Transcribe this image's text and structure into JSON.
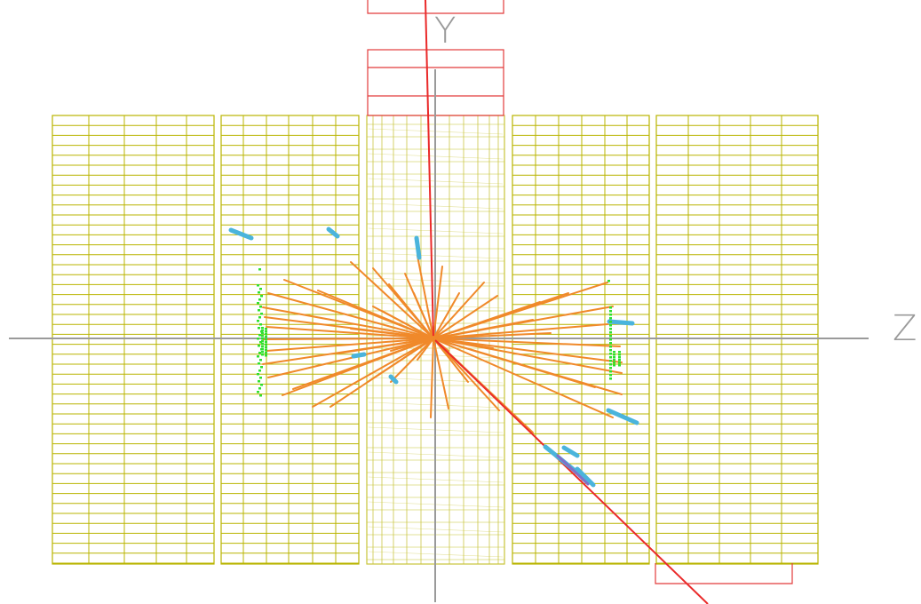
{
  "axes": {
    "y_label": "Y",
    "z_label": "Z"
  },
  "colors": {
    "background": "#ffffff",
    "axis": "#9a9a9a",
    "calorimeter_grid": "#b9b400",
    "barrel_grid": "#c8c43a",
    "muon_chamber": "#e23b3b",
    "track": "#f0892a",
    "muon_track": "#ea2a2a",
    "hit_cluster": "#4ab4dc",
    "hit_green": "#2fe02f",
    "hit_purple": "#8070c8"
  },
  "icons": [
    "vertex-point"
  ]
}
